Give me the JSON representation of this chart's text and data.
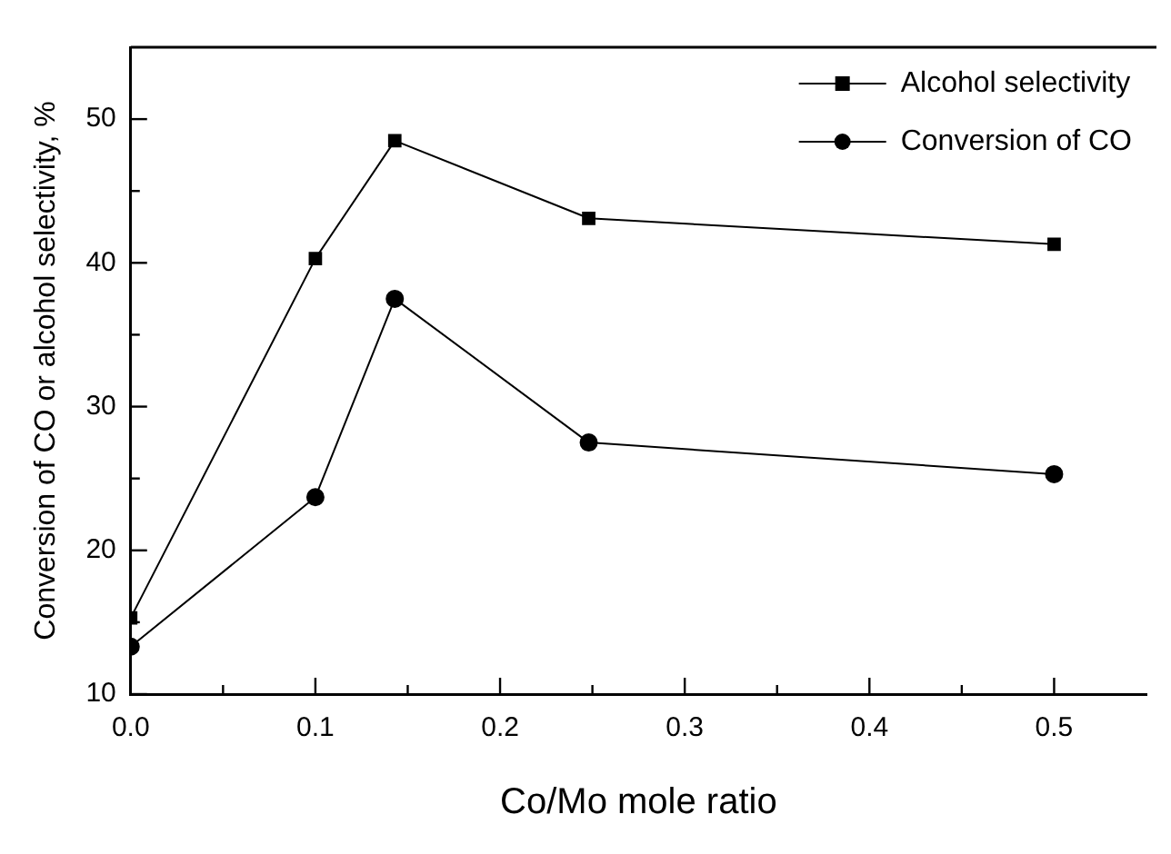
{
  "chart_data": {
    "type": "line",
    "xlabel": "Co/Mo mole ratio",
    "ylabel": "Conversion of CO or alcohol selectivity, %",
    "xlim": [
      0,
      0.55
    ],
    "xticks": [
      {
        "value": 0,
        "label": "0.0"
      },
      {
        "value": 0.05,
        "label": null
      },
      0.1,
      {
        "value": 0.15,
        "label": null
      },
      0.2,
      {
        "value": 0.25,
        "label": null
      },
      0.3,
      {
        "value": 0.35,
        "label": null
      },
      0.4,
      {
        "value": 0.45,
        "label": null
      },
      0.5
    ],
    "ylim": [
      10,
      55
    ],
    "yticks": [
      10,
      {
        "value": 15,
        "label": null
      },
      20,
      {
        "value": 25,
        "label": null
      },
      30,
      {
        "value": 35,
        "label": null
      },
      40,
      {
        "value": 45,
        "label": null
      },
      50
    ],
    "grid": false,
    "legend": "top right",
    "series": [
      {
        "name": "Alcohol selectivity",
        "color": "#000000",
        "marker": "square",
        "x": [
          0,
          0.1,
          0.143,
          0.248,
          0.5
        ],
        "values": [
          15.3,
          40.3,
          48.5,
          43.1,
          41.3
        ]
      },
      {
        "name": "Conversion of CO",
        "color": "#000000",
        "marker": "circle",
        "x": [
          0,
          0.1,
          0.143,
          0.248,
          0.5
        ],
        "values": [
          13.3,
          23.7,
          37.5,
          27.5,
          25.3
        ]
      }
    ]
  }
}
